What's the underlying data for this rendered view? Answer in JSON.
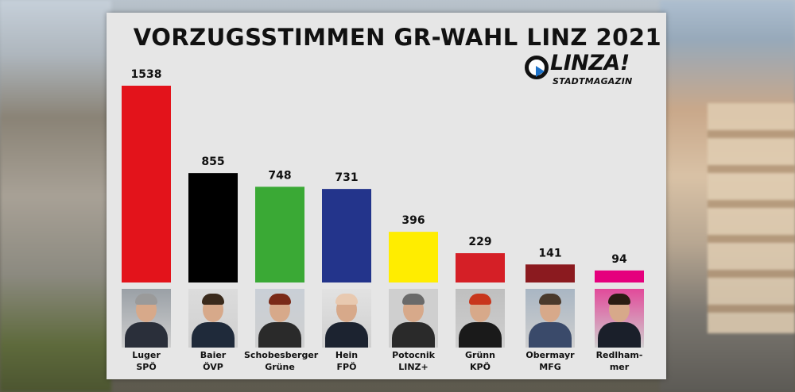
{
  "title": "VORZUGSSTIMMEN GR-WAHL LINZ 2021",
  "logo": {
    "name": "LINZA!",
    "sub": "STADTMAGAZIN",
    "accent": "#1d72c9"
  },
  "chart_data": {
    "type": "bar",
    "title": "VORZUGSSTIMMEN GR-WAHL LINZ 2021",
    "categories": [
      "Luger SPÖ",
      "Baier ÖVP",
      "Schobesberger Grüne",
      "Hein FPÖ",
      "Potocnik LINZ+",
      "Grünn KPÖ",
      "Obermayr MFG",
      "Redlhammer"
    ],
    "values": [
      1538,
      855,
      748,
      731,
      396,
      229,
      141,
      94
    ],
    "ylim": [
      0,
      1538
    ],
    "grid": false,
    "legend": "none",
    "data_labels": true
  },
  "candidates": [
    {
      "name": "Luger",
      "party": "SPÖ",
      "color": "#e3131b",
      "votes": "1538"
    },
    {
      "name": "Baier",
      "party": "ÖVP",
      "color": "#000000",
      "votes": "855"
    },
    {
      "name": "Schobesberger",
      "party": "Grüne",
      "color": "#3aa935",
      "votes": "748"
    },
    {
      "name": "Hein",
      "party": "FPÖ",
      "color": "#23348b",
      "votes": "731"
    },
    {
      "name": "Potocnik",
      "party": "LINZ+",
      "color": "#ffed00",
      "votes": "396"
    },
    {
      "name": "Grünn",
      "party": "KPÖ",
      "color": "#d51f26",
      "votes": "229"
    },
    {
      "name": "Obermayr",
      "party": "MFG",
      "color": "#8b1a1f",
      "votes": "141"
    },
    {
      "name": "Redlham-",
      "party": "mer",
      "color": "#e5007d",
      "votes": "94"
    }
  ]
}
